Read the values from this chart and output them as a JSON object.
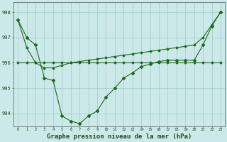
{
  "line1": {
    "x": [
      0,
      1,
      2,
      3,
      4,
      5,
      6,
      7,
      8,
      9,
      10,
      11,
      12,
      13,
      14,
      15,
      16,
      17,
      18,
      19,
      20,
      21,
      22,
      23
    ],
    "y": [
      997.7,
      997.0,
      996.7,
      995.4,
      995.3,
      993.9,
      993.7,
      993.6,
      993.9,
      994.1,
      994.65,
      995.0,
      995.4,
      995.6,
      995.85,
      995.95,
      996.05,
      996.1,
      996.1,
      996.1,
      996.1,
      996.7,
      997.45,
      998.0
    ],
    "color": "#1a6b1a",
    "marker": "D",
    "markersize": 2.0,
    "linewidth": 0.8
  },
  "line2": {
    "x": [
      0,
      1,
      2,
      3,
      4,
      5,
      6,
      7,
      8,
      9,
      10,
      11,
      12,
      13,
      14,
      15,
      16,
      17,
      18,
      19,
      20,
      21,
      22,
      23
    ],
    "y": [
      996.0,
      996.0,
      996.0,
      996.0,
      996.0,
      996.0,
      996.0,
      996.0,
      996.0,
      996.0,
      996.0,
      996.0,
      996.0,
      996.0,
      996.0,
      996.0,
      996.0,
      996.0,
      996.0,
      996.0,
      996.0,
      996.0,
      996.0,
      996.0
    ],
    "color": "#1a6b1a",
    "marker": "D",
    "markersize": 1.5,
    "linewidth": 0.8
  },
  "line3": {
    "x": [
      0,
      1,
      2,
      3,
      4,
      5,
      6,
      7,
      8,
      9,
      10,
      11,
      12,
      13,
      14,
      15,
      16,
      17,
      18,
      19,
      20,
      21,
      22,
      23
    ],
    "y": [
      997.7,
      996.6,
      996.0,
      995.8,
      995.8,
      995.9,
      996.0,
      996.05,
      996.1,
      996.15,
      996.2,
      996.25,
      996.3,
      996.35,
      996.4,
      996.45,
      996.5,
      996.55,
      996.6,
      996.65,
      996.7,
      997.0,
      997.5,
      998.0
    ],
    "color": "#1a6b1a",
    "marker": "D",
    "markersize": 1.5,
    "linewidth": 0.8
  },
  "background_color": "#cce8e8",
  "grid_color": "#99cccc",
  "plot_bg": "#cce8e8",
  "xlabel": "Graphe pression niveau de la mer (hPa)",
  "xlabel_fontsize": 6.5,
  "ytick_labels": [
    "994",
    "995",
    "996",
    "997",
    "998"
  ],
  "ytick_values": [
    994,
    995,
    996,
    997,
    998
  ],
  "xticks": [
    0,
    1,
    2,
    3,
    4,
    5,
    6,
    7,
    8,
    9,
    10,
    11,
    12,
    13,
    14,
    15,
    16,
    17,
    18,
    19,
    20,
    21,
    22,
    23
  ],
  "ylim": [
    993.5,
    998.4
  ],
  "xlim": [
    -0.5,
    23.5
  ]
}
